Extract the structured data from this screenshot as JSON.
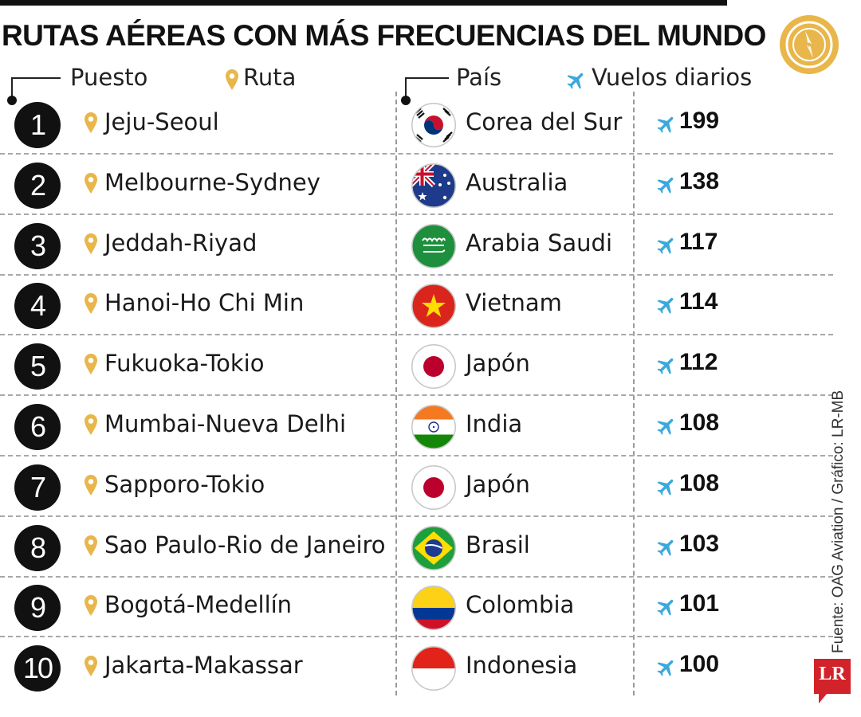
{
  "title": "RUTAS AÉREAS CON MÁS FRECUENCIAS DEL MUNDO",
  "headers": {
    "rank": "Puesto",
    "route": "Ruta",
    "country": "País",
    "flights": "Vuelos diarios"
  },
  "colors": {
    "gold": "#E8B64A",
    "plane_blue": "#3BA9DC",
    "logo_red": "#D2232A",
    "dark": "#111111"
  },
  "rows": [
    {
      "rank": "1",
      "route": "Jeju-Seoul",
      "country": "Corea del Sur",
      "flights": "199",
      "flag": "south-korea"
    },
    {
      "rank": "2",
      "route": "Melbourne-Sydney",
      "country": "Australia",
      "flights": "138",
      "flag": "australia"
    },
    {
      "rank": "3",
      "route": "Jeddah-Riyad",
      "country": "Arabia Saudi",
      "flights": "117",
      "flag": "saudi-arabia"
    },
    {
      "rank": "4",
      "route": "Hanoi-Ho Chi Min",
      "country": "Vietnam",
      "flights": "114",
      "flag": "vietnam"
    },
    {
      "rank": "5",
      "route": "Fukuoka-Tokio",
      "country": "Japón",
      "flights": "112",
      "flag": "japan"
    },
    {
      "rank": "6",
      "route": "Mumbai-Nueva Delhi",
      "country": "India",
      "flights": "108",
      "flag": "india"
    },
    {
      "rank": "7",
      "route": "Sapporo-Tokio",
      "country": "Japón",
      "flights": "108",
      "flag": "japan"
    },
    {
      "rank": "8",
      "route": "Sao Paulo-Rio de Janeiro",
      "country": "Brasil",
      "flights": "103",
      "flag": "brazil"
    },
    {
      "rank": "9",
      "route": "Bogotá-Medellín",
      "country": "Colombia",
      "flights": "101",
      "flag": "colombia"
    },
    {
      "rank": "10",
      "route": "Jakarta-Makassar",
      "country": "Indonesia",
      "flights": "100",
      "flag": "indonesia"
    }
  ],
  "source": "Fuente: OAG Aviation / Gráfico: LR-MB",
  "logo": "LR"
}
